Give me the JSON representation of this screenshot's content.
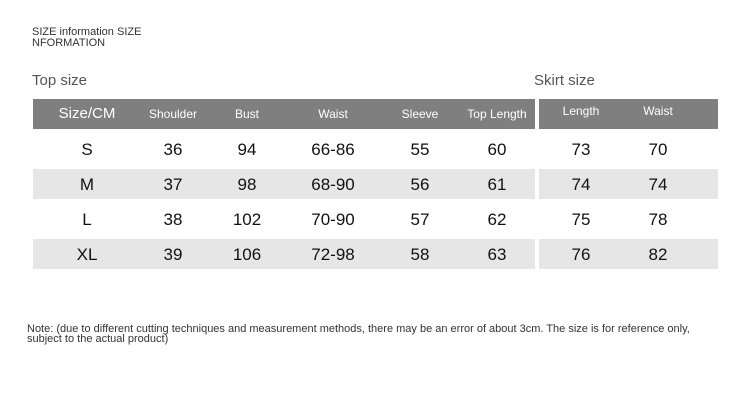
{
  "title": "SIZE information SIZE NFORMATION",
  "top": {
    "label": "Top size",
    "headers": [
      "Size/CM",
      "Shoulder",
      "Bust",
      "Waist",
      "Sleeve",
      "Top Length"
    ],
    "rows": [
      [
        "S",
        "36",
        "94",
        "66-86",
        "55",
        "60"
      ],
      [
        "M",
        "37",
        "98",
        "68-90",
        "56",
        "61"
      ],
      [
        "L",
        "38",
        "102",
        "70-90",
        "57",
        "62"
      ],
      [
        "XL",
        "39",
        "106",
        "72-98",
        "58",
        "63"
      ]
    ]
  },
  "skirt": {
    "label": "Skirt size",
    "headers": [
      "Length",
      "Waist"
    ],
    "rows": [
      [
        "73",
        "70"
      ],
      [
        "74",
        "74"
      ],
      [
        "75",
        "78"
      ],
      [
        "76",
        "82"
      ]
    ]
  },
  "note": "Note: (due to different cutting techniques and measurement methods, there may be an error of about 3cm. The size is for reference only, subject to the actual product)",
  "colors": {
    "header": "#7f7f7f",
    "stripe": "#e6e6e6"
  }
}
